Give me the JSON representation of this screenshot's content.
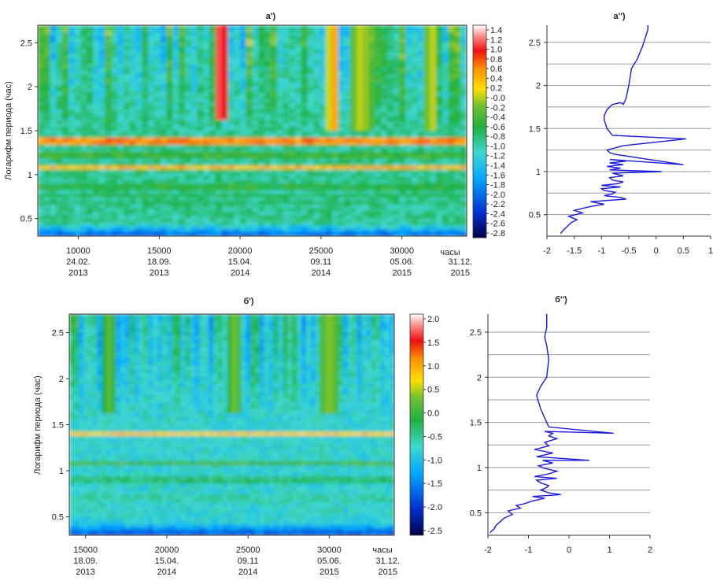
{
  "chart_data": [
    {
      "id": "a1",
      "type": "heatmap",
      "title": "a')",
      "ylabel": "Логарифм периода (час)",
      "xlabel": "часы",
      "x_ticks": [
        10000,
        15000,
        20000,
        25000,
        30000
      ],
      "xlim": [
        7500,
        34000
      ],
      "y_ticks": [
        "0.5",
        "1",
        "1.5",
        "2",
        "2.5"
      ],
      "ylim": [
        0.3,
        2.7
      ],
      "date_labels": [
        {
          "x": 10000,
          "day": "24.02.",
          "year": "2013"
        },
        {
          "x": 15000,
          "day": "18.09.",
          "year": "2013"
        },
        {
          "x": 20000,
          "day": "15.04.",
          "year": "2014"
        },
        {
          "x": 25000,
          "day": "09.11",
          "year": "2014"
        },
        {
          "x": 30000,
          "day": "05.06.",
          "year": "2015"
        },
        {
          "x": 33600,
          "day": "31.12.",
          "year": "2015"
        }
      ],
      "colorbar_ticks": [
        "1.4",
        "1.2",
        "1.0",
        "0.8",
        "0.6",
        "0.4",
        "0.2",
        "-0.0",
        "-0.2",
        "-0.4",
        "-0.6",
        "-0.8",
        "-1.0",
        "-1.2",
        "-1.4",
        "-1.6",
        "-1.8",
        "-2.0",
        "-2.2",
        "-2.4",
        "-2.6",
        "-2.8"
      ],
      "colorbar_range": [
        -2.9,
        1.5
      ],
      "bands": [
        {
          "y": 1.38,
          "level": 0.8
        },
        {
          "y": 1.07,
          "level": 0.6
        },
        {
          "y": 1.22,
          "level": -0.3
        },
        {
          "y": 0.86,
          "level": -0.4
        },
        {
          "y": 0.76,
          "level": -0.5
        },
        {
          "y": 0.68,
          "level": -0.6
        }
      ]
    },
    {
      "id": "a2",
      "type": "line",
      "title": "a'')",
      "x_ticks": [
        "-2",
        "-1.5",
        "-1",
        "-0.5",
        "0",
        "0.5",
        "1"
      ],
      "xlim": [
        -2,
        1
      ],
      "y_ticks": [
        "0.5",
        "1",
        "1.5",
        "2",
        "2.5"
      ],
      "ylim": [
        0.25,
        2.7
      ],
      "hgrid": [
        0.5,
        0.75,
        1.0,
        1.25,
        1.5,
        1.75,
        2.0,
        2.25,
        2.5
      ],
      "x": [
        -1.75,
        -1.7,
        -1.65,
        -1.6,
        -1.55,
        -1.45,
        -1.6,
        -1.35,
        -1.5,
        -1.3,
        -1.15,
        -0.95,
        -1.2,
        -0.55,
        -0.65,
        -0.95,
        -0.8,
        -0.75,
        -0.95,
        -1.0,
        -0.65,
        -1.0,
        -0.7,
        -0.6,
        -0.8,
        -0.85,
        -0.6,
        -0.8,
        0.1,
        -0.85,
        -0.65,
        -0.9,
        -0.6,
        -0.85,
        -0.55,
        -0.85,
        0.5,
        -0.75,
        -0.85,
        -0.9,
        -0.6,
        0.55,
        -0.8,
        -0.9,
        -0.95,
        -0.95,
        -0.9,
        -0.8,
        -0.65,
        -0.6,
        -0.55,
        -0.5,
        -0.45,
        -0.35,
        -0.25,
        -0.2,
        -0.15,
        -0.15
      ],
      "y": [
        0.28,
        0.32,
        0.35,
        0.38,
        0.41,
        0.44,
        0.48,
        0.52,
        0.55,
        0.58,
        0.6,
        0.62,
        0.65,
        0.68,
        0.7,
        0.72,
        0.74,
        0.76,
        0.78,
        0.8,
        0.82,
        0.84,
        0.86,
        0.88,
        0.9,
        0.93,
        0.95,
        0.98,
        1.0,
        1.02,
        1.04,
        1.06,
        1.08,
        1.1,
        1.12,
        1.14,
        1.08,
        1.2,
        1.22,
        1.25,
        1.3,
        1.38,
        1.42,
        1.5,
        1.6,
        1.65,
        1.72,
        1.78,
        1.8,
        1.78,
        1.85,
        2.0,
        2.2,
        2.3,
        2.45,
        2.55,
        2.65,
        2.7
      ]
    },
    {
      "id": "b1",
      "type": "heatmap",
      "title": "б')",
      "ylabel": "Логарифм периода (час)",
      "xlabel": "часы",
      "x_ticks": [
        15000,
        20000,
        25000,
        30000
      ],
      "xlim": [
        14000,
        34000
      ],
      "y_ticks": [
        "0.5",
        "1",
        "1.5",
        "2",
        "2.5"
      ],
      "ylim": [
        0.3,
        2.7
      ],
      "date_labels": [
        {
          "x": 15000,
          "day": "18.09.",
          "year": "2013"
        },
        {
          "x": 20000,
          "day": "15.04.",
          "year": "2014"
        },
        {
          "x": 25000,
          "day": "09.11",
          "year": "2014"
        },
        {
          "x": 30000,
          "day": "05.06.",
          "year": "2015"
        },
        {
          "x": 33600,
          "day": "31.12.",
          "year": "2015"
        }
      ],
      "colorbar_ticks": [
        "2.0",
        "1.5",
        "1.0",
        "0.5",
        "0.0",
        "-0.5",
        "-1.0",
        "-1.5",
        "-2.0",
        "-2.5"
      ],
      "colorbar_range": [
        -2.9,
        2.2
      ],
      "bands": [
        {
          "y": 1.39,
          "level": 1.0
        },
        {
          "y": 1.08,
          "level": 0.2
        },
        {
          "y": 0.9,
          "level": -0.3
        },
        {
          "y": 0.7,
          "level": -0.5
        }
      ]
    },
    {
      "id": "b2",
      "type": "line",
      "title": "б'')",
      "x_ticks": [
        "-2",
        "-1",
        "0",
        "1",
        "2"
      ],
      "xlim": [
        -2,
        2
      ],
      "y_ticks": [
        "0.5",
        "1",
        "1.5",
        "2",
        "2.5"
      ],
      "ylim": [
        0.25,
        2.7
      ],
      "hgrid": [
        0.5,
        0.75,
        1.0,
        1.25,
        1.5,
        1.75,
        2.0,
        2.25,
        2.5
      ],
      "x": [
        -1.95,
        -1.85,
        -1.8,
        -1.7,
        -1.6,
        -1.4,
        -1.5,
        -1.2,
        -1.3,
        -1.1,
        -0.9,
        -0.6,
        -0.9,
        -0.2,
        -0.5,
        -0.7,
        -0.55,
        -0.5,
        -0.7,
        -0.8,
        -0.3,
        -0.85,
        -0.5,
        -0.3,
        -0.6,
        -0.75,
        -0.4,
        -0.65,
        0.5,
        -0.8,
        -0.4,
        -0.85,
        -0.5,
        -0.6,
        -0.3,
        -0.5,
        -0.4,
        -0.6,
        1.1,
        -0.5,
        -0.6,
        -0.7,
        -0.8,
        -0.7,
        -0.55,
        -0.5,
        -0.55,
        -0.6,
        -0.55,
        -0.55,
        -0.55
      ],
      "y": [
        0.28,
        0.32,
        0.36,
        0.4,
        0.44,
        0.48,
        0.52,
        0.55,
        0.58,
        0.6,
        0.63,
        0.66,
        0.68,
        0.7,
        0.72,
        0.75,
        0.78,
        0.8,
        0.83,
        0.86,
        0.88,
        0.9,
        0.93,
        0.96,
        0.99,
        1.02,
        1.05,
        1.08,
        1.08,
        1.12,
        1.16,
        1.2,
        1.24,
        1.28,
        1.32,
        1.35,
        1.38,
        1.4,
        1.38,
        1.45,
        1.55,
        1.65,
        1.8,
        1.9,
        2.0,
        2.2,
        2.35,
        2.45,
        2.55,
        2.62,
        2.7
      ]
    }
  ]
}
